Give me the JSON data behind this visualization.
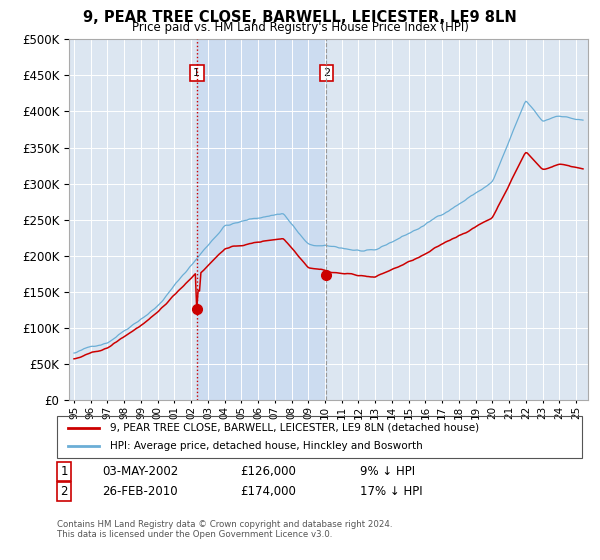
{
  "title": "9, PEAR TREE CLOSE, BARWELL, LEICESTER, LE9 8LN",
  "subtitle": "Price paid vs. HM Land Registry's House Price Index (HPI)",
  "legend_line1": "9, PEAR TREE CLOSE, BARWELL, LEICESTER, LE9 8LN (detached house)",
  "legend_line2": "HPI: Average price, detached house, Hinckley and Bosworth",
  "annotation1_date": "03-MAY-2002",
  "annotation1_price": "£126,000",
  "annotation1_hpi": "9% ↓ HPI",
  "annotation2_date": "26-FEB-2010",
  "annotation2_price": "£174,000",
  "annotation2_hpi": "17% ↓ HPI",
  "footer": "Contains HM Land Registry data © Crown copyright and database right 2024.\nThis data is licensed under the Open Government Licence v3.0.",
  "sale1_year": 2002,
  "sale1_month": 5,
  "sale1_y": 126000,
  "sale2_year": 2010,
  "sale2_month": 2,
  "sale2_y": 174000,
  "hpi_color": "#6baed6",
  "price_color": "#cc0000",
  "vline1_color": "#cc0000",
  "vline2_color": "#999999",
  "shade_color": "#c6d9f0",
  "annotation_box_color": "#cc0000",
  "background_color": "#dce6f1",
  "ylim": [
    0,
    500000
  ],
  "xlim_start_year": 1995,
  "xlim_start_month": 1,
  "xlim_end_year": 2025,
  "xlim_end_month": 6,
  "yticks": [
    0,
    50000,
    100000,
    150000,
    200000,
    250000,
    300000,
    350000,
    400000,
    450000,
    500000
  ],
  "xtick_years": [
    1995,
    1996,
    1997,
    1998,
    1999,
    2000,
    2001,
    2002,
    2003,
    2004,
    2005,
    2006,
    2007,
    2008,
    2009,
    2010,
    2011,
    2012,
    2013,
    2014,
    2015,
    2016,
    2017,
    2018,
    2019,
    2020,
    2021,
    2022,
    2023,
    2024,
    2025
  ]
}
